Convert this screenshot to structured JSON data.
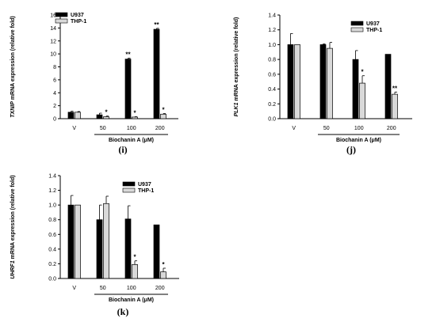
{
  "chart_data": [
    {
      "type": "bar",
      "panel": "(i)",
      "ylabel_italic": "TXNIP",
      "ylabel_rest": " mRNA expression (relative fold)",
      "xlabel": "Biochanin A (μM)",
      "categories": [
        "V",
        "50",
        "100",
        "200"
      ],
      "ylim": [
        0,
        16
      ],
      "yticks": [
        "0",
        "2",
        "4",
        "6",
        "8",
        "10",
        "12",
        "14",
        "16"
      ],
      "series": [
        {
          "name": "U937",
          "values": [
            1.0,
            0.6,
            9.2,
            13.8
          ],
          "errors": [
            0.15,
            0.25,
            0.15,
            0.15
          ],
          "stars": [
            "",
            "",
            "**",
            "**"
          ]
        },
        {
          "name": "THP-1",
          "values": [
            1.0,
            0.3,
            0.25,
            0.7
          ],
          "errors": [
            0.1,
            0.1,
            0.05,
            0.1
          ],
          "stars": [
            "",
            "*",
            "*",
            "*"
          ]
        }
      ]
    },
    {
      "type": "bar",
      "panel": "(j)",
      "ylabel_italic": "PLK1",
      "ylabel_rest": " mRNA expression (relative fold)",
      "xlabel": "Biochanin A (μM)",
      "categories": [
        "V",
        "50",
        "100",
        "200"
      ],
      "ylim": [
        0,
        1.4
      ],
      "yticks": [
        "0.0",
        "0.2",
        "0.4",
        "0.6",
        "0.8",
        "1.0",
        "1.2",
        "1.4"
      ],
      "series": [
        {
          "name": "U937",
          "values": [
            1.0,
            1.0,
            0.8,
            0.87
          ],
          "errors": [
            0.15,
            0.01,
            0.12,
            0.0
          ],
          "stars": [
            "",
            "",
            "",
            ""
          ]
        },
        {
          "name": "THP-1",
          "values": [
            1.0,
            0.95,
            0.48,
            0.33
          ],
          "errors": [
            0.0,
            0.08,
            0.1,
            0.03
          ],
          "stars": [
            "",
            "",
            "*",
            "**"
          ]
        }
      ]
    },
    {
      "type": "bar",
      "panel": "(k)",
      "ylabel_italic": "UHRF1",
      "ylabel_rest": " mRNA expression (relative fold)",
      "xlabel": "Biochanin A (μM)",
      "categories": [
        "V",
        "50",
        "100",
        "200"
      ],
      "ylim": [
        0,
        1.4
      ],
      "yticks": [
        "0.0",
        "0.2",
        "0.4",
        "0.6",
        "0.8",
        "1.0",
        "1.2",
        "1.4"
      ],
      "series": [
        {
          "name": "U937",
          "values": [
            1.0,
            0.8,
            0.81,
            0.73
          ],
          "errors": [
            0.13,
            0.2,
            0.18,
            0.0
          ],
          "stars": [
            "",
            "",
            "",
            ""
          ]
        },
        {
          "name": "THP-1",
          "values": [
            1.0,
            1.02,
            0.19,
            0.09
          ],
          "errors": [
            0.0,
            0.1,
            0.05,
            0.05
          ],
          "stars": [
            "",
            "",
            "*",
            "*"
          ]
        }
      ]
    }
  ],
  "colors": {
    "u937": "#000000",
    "thp1": "#d9d9d9"
  }
}
